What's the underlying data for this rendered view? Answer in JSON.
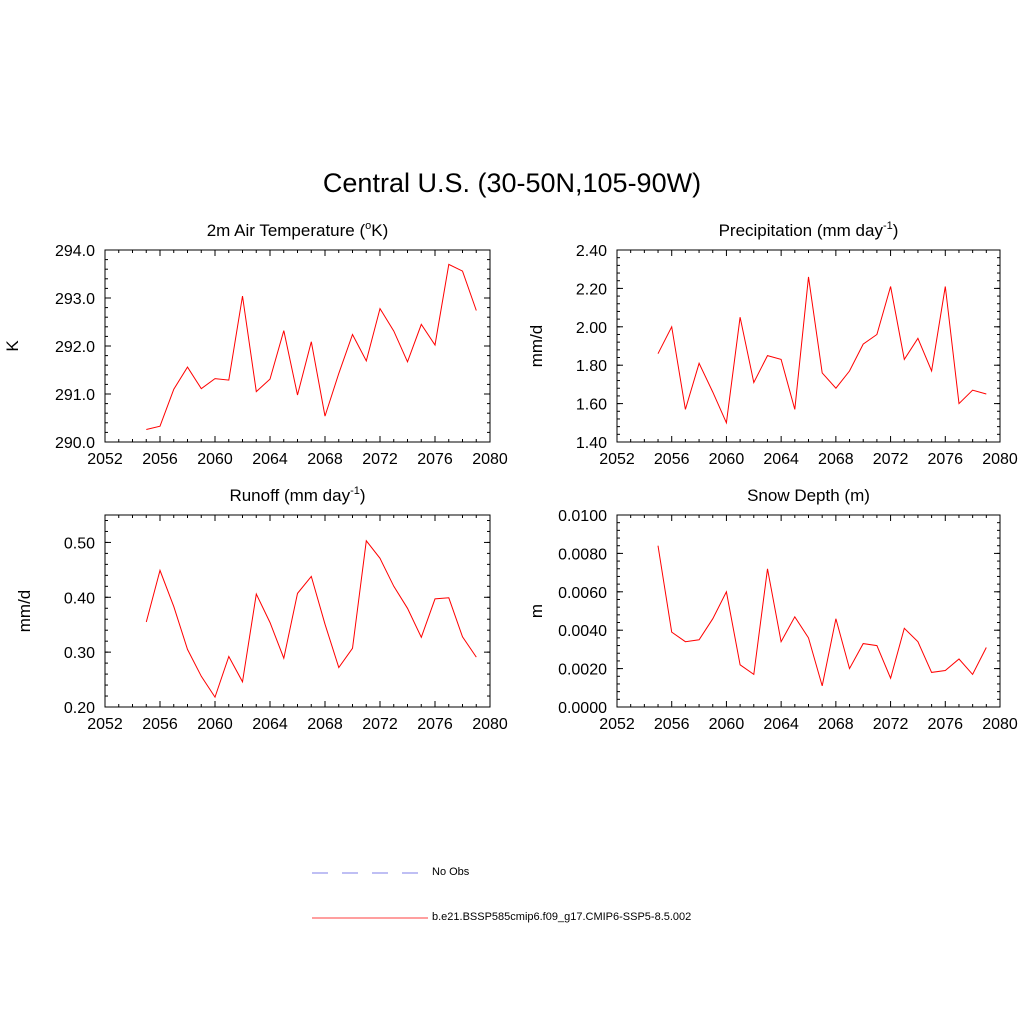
{
  "title": "Central U.S. (30-50N,105-90W)",
  "legend": {
    "items": [
      {
        "label": "No Obs",
        "color": "#9999ee",
        "style": "dashed"
      },
      {
        "label": "b.e21.BSSP585cmip6.f09_g17.CMIP6-SSP5-8.5.002",
        "color": "#ff6666",
        "style": "solid"
      }
    ]
  },
  "chart_data": [
    {
      "type": "line",
      "title": "2m Air Temperature (",
      "title_sup": "o",
      "title_after": "K)",
      "ylabel": "K",
      "xlim": [
        2052,
        2080
      ],
      "xticks": [
        "2052",
        "2056",
        "2060",
        "2064",
        "2068",
        "2072",
        "2076",
        "2080"
      ],
      "ylim": [
        290.0,
        294.0
      ],
      "yticks": [
        "290.0",
        "291.0",
        "292.0",
        "293.0",
        "294.0"
      ],
      "color": "#ff0000",
      "series": [
        {
          "x": [
            2055,
            2056,
            2057,
            2058,
            2059,
            2060,
            2061,
            2062,
            2063,
            2064,
            2065,
            2066,
            2067,
            2068,
            2069,
            2070,
            2071,
            2072,
            2073,
            2074,
            2075,
            2076,
            2077,
            2078,
            2079
          ],
          "values": [
            290.26,
            290.33,
            291.1,
            291.56,
            291.11,
            291.32,
            291.29,
            293.04,
            291.05,
            291.31,
            292.32,
            290.98,
            292.09,
            290.54,
            291.43,
            292.24,
            291.69,
            292.78,
            292.31,
            291.67,
            292.45,
            292.02,
            293.7,
            293.56,
            292.74
          ]
        }
      ]
    },
    {
      "type": "line",
      "title": "Precipitation (mm day",
      "title_sup": "-1",
      "title_after": ")",
      "ylabel": "mm/d",
      "xlim": [
        2052,
        2080
      ],
      "xticks": [
        "2052",
        "2056",
        "2060",
        "2064",
        "2068",
        "2072",
        "2076",
        "2080"
      ],
      "ylim": [
        1.4,
        2.4
      ],
      "yticks": [
        "1.40",
        "1.60",
        "1.80",
        "2.00",
        "2.20",
        "2.40"
      ],
      "color": "#ff0000",
      "series": [
        {
          "x": [
            2055,
            2056,
            2057,
            2058,
            2059,
            2060,
            2061,
            2062,
            2063,
            2064,
            2065,
            2066,
            2067,
            2068,
            2069,
            2070,
            2071,
            2072,
            2073,
            2074,
            2075,
            2076,
            2077,
            2078,
            2079
          ],
          "values": [
            1.86,
            2.0,
            1.57,
            1.81,
            1.66,
            1.5,
            2.05,
            1.71,
            1.85,
            1.83,
            1.57,
            2.26,
            1.76,
            1.68,
            1.77,
            1.91,
            1.96,
            2.21,
            1.83,
            1.94,
            1.77,
            2.21,
            1.6,
            1.67,
            1.65
          ]
        }
      ]
    },
    {
      "type": "line",
      "title": "Runoff (mm day",
      "title_sup": "-1",
      "title_after": ")",
      "ylabel": "mm/d",
      "xlim": [
        2052,
        2080
      ],
      "xticks": [
        "2052",
        "2056",
        "2060",
        "2064",
        "2068",
        "2072",
        "2076",
        "2080"
      ],
      "ylim": [
        0.2,
        0.55
      ],
      "yticks": [
        "0.20",
        "0.30",
        "0.40",
        "0.50"
      ],
      "color": "#ff0000",
      "series": [
        {
          "x": [
            2055,
            2056,
            2057,
            2058,
            2059,
            2060,
            2061,
            2062,
            2063,
            2064,
            2065,
            2066,
            2067,
            2068,
            2069,
            2070,
            2071,
            2072,
            2073,
            2074,
            2075,
            2076,
            2077,
            2078,
            2079
          ],
          "values": [
            0.355,
            0.449,
            0.383,
            0.305,
            0.256,
            0.218,
            0.292,
            0.246,
            0.406,
            0.354,
            0.289,
            0.407,
            0.438,
            0.351,
            0.272,
            0.307,
            0.503,
            0.471,
            0.42,
            0.38,
            0.327,
            0.397,
            0.399,
            0.328,
            0.291
          ]
        }
      ]
    },
    {
      "type": "line",
      "title": "Snow Depth (m)",
      "title_sup": "",
      "title_after": "",
      "ylabel": "m",
      "xlim": [
        2052,
        2080
      ],
      "xticks": [
        "2052",
        "2056",
        "2060",
        "2064",
        "2068",
        "2072",
        "2076",
        "2080"
      ],
      "ylim": [
        0.0,
        0.01
      ],
      "yticks": [
        "0.0000",
        "0.0020",
        "0.0040",
        "0.0060",
        "0.0080",
        "0.0100"
      ],
      "color": "#ff0000",
      "series": [
        {
          "x": [
            2055,
            2056,
            2057,
            2058,
            2059,
            2060,
            2061,
            2062,
            2063,
            2064,
            2065,
            2066,
            2067,
            2068,
            2069,
            2070,
            2071,
            2072,
            2073,
            2074,
            2075,
            2076,
            2077,
            2078,
            2079
          ],
          "values": [
            0.0084,
            0.0039,
            0.0034,
            0.0035,
            0.0046,
            0.006,
            0.0022,
            0.0017,
            0.0072,
            0.0034,
            0.0047,
            0.0036,
            0.0011,
            0.0046,
            0.002,
            0.0033,
            0.0032,
            0.0015,
            0.0041,
            0.0034,
            0.0018,
            0.0019,
            0.0025,
            0.0017,
            0.0031
          ]
        }
      ]
    }
  ]
}
